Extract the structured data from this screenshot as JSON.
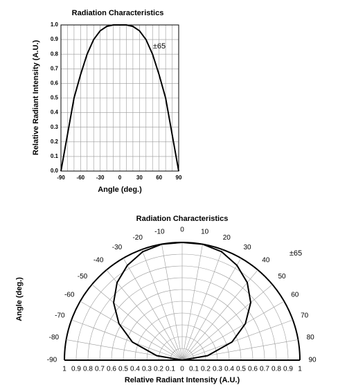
{
  "chart_data": [
    {
      "type": "line",
      "title": "Radiation Characteristics",
      "xlabel": "Angle (deg.)",
      "ylabel": "Relative Radiant Intensity (A.U.)",
      "annotation": "±65",
      "x": [
        -90,
        -80,
        -70,
        -60,
        -50,
        -40,
        -30,
        -20,
        -10,
        0,
        10,
        20,
        30,
        40,
        50,
        60,
        70,
        80,
        90
      ],
      "values": [
        0,
        0.25,
        0.5,
        0.66,
        0.8,
        0.9,
        0.96,
        0.99,
        1,
        1,
        1,
        0.99,
        0.96,
        0.9,
        0.8,
        0.66,
        0.5,
        0.25,
        0
      ],
      "color": "#000000",
      "xlim": [
        -90,
        90
      ],
      "xticks": [
        -90,
        -60,
        -30,
        0,
        30,
        60,
        90
      ],
      "ylim": [
        0,
        1
      ],
      "yticks": [
        {
          "value": 0,
          "label": "0.0"
        },
        0.1,
        0.2,
        0.3,
        0.4,
        0.5,
        0.6,
        0.7,
        0.8,
        0.9,
        {
          "value": 1,
          "label": "1.0"
        }
      ],
      "grid": true
    },
    {
      "type": "polar",
      "title": "Radiation Characteristics",
      "thetalabel": "Angle (deg.)",
      "rlabel": "Relative Radiant Intensity (A.U.)",
      "annotation": "±65",
      "theta": [
        -90,
        -80,
        -70,
        -60,
        -50,
        -40,
        -30,
        -20,
        -10,
        0,
        10,
        20,
        30,
        40,
        50,
        60,
        70,
        80,
        90
      ],
      "r": [
        0,
        0.22,
        0.45,
        0.62,
        0.76,
        0.86,
        0.93,
        0.98,
        1,
        1,
        1,
        0.98,
        0.93,
        0.86,
        0.76,
        0.62,
        0.45,
        0.22,
        0
      ],
      "color": "#000000",
      "thetalim": [
        -90,
        90
      ],
      "thetaticks": [
        -90,
        -80,
        -70,
        -60,
        -50,
        -40,
        -30,
        -20,
        -10,
        0,
        10,
        20,
        30,
        40,
        50,
        60,
        70,
        80,
        90
      ],
      "rlim": [
        0,
        1
      ],
      "rticks": [
        0,
        0.1,
        0.2,
        0.3,
        0.4,
        0.5,
        0.6,
        0.7,
        0.8,
        0.9,
        1
      ],
      "grid": true
    }
  ]
}
